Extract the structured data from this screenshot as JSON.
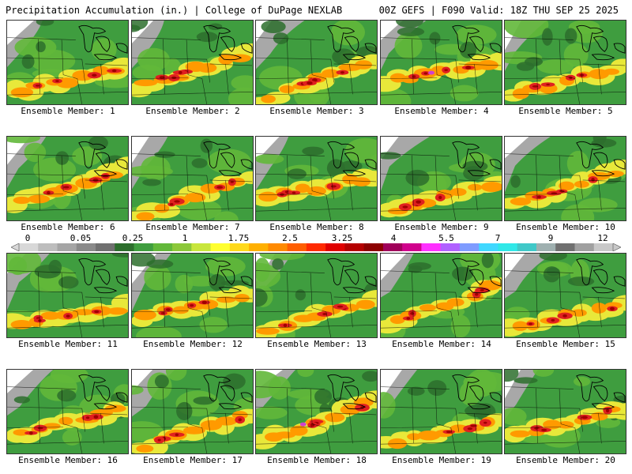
{
  "header": {
    "left": "Precipitation Accumulation (in.) | College of DuPage NEXLAB",
    "right": "00Z GEFS | F090 Valid: 18Z THU SEP 25 2025"
  },
  "caption_prefix": "Ensemble Member: ",
  "members": [
    {
      "label": "Ensemble Member: 1"
    },
    {
      "label": "Ensemble Member: 2"
    },
    {
      "label": "Ensemble Member: 3"
    },
    {
      "label": "Ensemble Member: 4"
    },
    {
      "label": "Ensemble Member: 5"
    },
    {
      "label": "Ensemble Member: 6"
    },
    {
      "label": "Ensemble Member: 7"
    },
    {
      "label": "Ensemble Member: 8"
    },
    {
      "label": "Ensemble Member: 9"
    },
    {
      "label": "Ensemble Member: 10"
    },
    {
      "label": "Ensemble Member: 11"
    },
    {
      "label": "Ensemble Member: 12"
    },
    {
      "label": "Ensemble Member: 13"
    },
    {
      "label": "Ensemble Member: 14"
    },
    {
      "label": "Ensemble Member: 15"
    },
    {
      "label": "Ensemble Member: 16"
    },
    {
      "label": "Ensemble Member: 17"
    },
    {
      "label": "Ensemble Member: 18"
    },
    {
      "label": "Ensemble Member: 19"
    },
    {
      "label": "Ensemble Member: 20"
    }
  ],
  "colorbar": {
    "ticks": [
      "0",
      "0.05",
      "0.25",
      "1",
      "1.75",
      "2.5",
      "3.25",
      "4",
      "5.5",
      "7",
      "9",
      "12"
    ],
    "colors": [
      "#d8d8d8",
      "#bdbdbd",
      "#a5a5a5",
      "#8a8a8a",
      "#707070",
      "#2d6e2d",
      "#3f9d3f",
      "#62b83a",
      "#8cc83a",
      "#c8e63c",
      "#ffff30",
      "#ffd91a",
      "#ffb000",
      "#ff8a00",
      "#ff5e00",
      "#ff2a00",
      "#e00000",
      "#b40000",
      "#8c0000",
      "#a0005a",
      "#d0008c",
      "#ff30ff",
      "#b060ff",
      "#7f9cff",
      "#40d8ff",
      "#30e8e8",
      "#40c8c8",
      "#9fb0b0",
      "#707070",
      "#a0a0a0",
      "#c8c8c8"
    ]
  },
  "palette": {
    "land": "#3f9d3f",
    "green_light": "#62b83a",
    "green_dark": "#2d6e2d",
    "yellow": "#e8e83a",
    "orange": "#ff9a00",
    "red": "#e02020",
    "dark_red": "#a00000",
    "magenta": "#d040d0",
    "gray": "#a8a8a8",
    "white": "#ffffff"
  }
}
